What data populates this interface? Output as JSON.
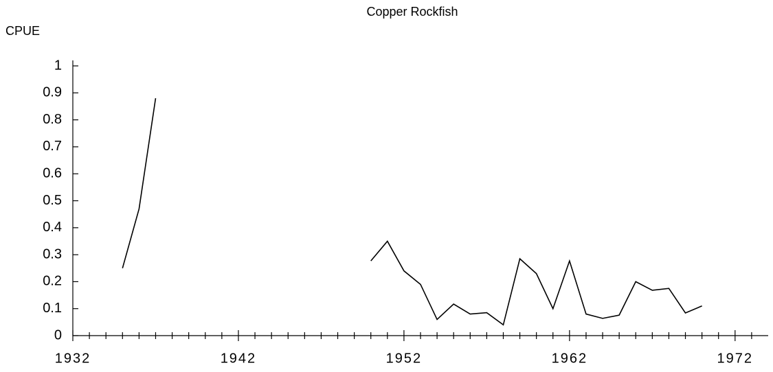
{
  "chart_data": {
    "type": "line",
    "title": "Copper Rockfish",
    "y_label": "CPUE",
    "x": [
      1935,
      1936,
      1937,
      1938,
      1939,
      1940,
      1941,
      1942,
      1943,
      1944,
      1945,
      1946,
      1947,
      1948,
      1949,
      1950,
      1951,
      1952,
      1953,
      1954,
      1955,
      1956,
      1957,
      1958,
      1959,
      1960,
      1961,
      1962,
      1963,
      1964,
      1965,
      1966,
      1967,
      1968,
      1969,
      1970
    ],
    "series": [
      {
        "color": "#000000",
        "values": [
          0.25,
          0.47,
          0.88,
          null,
          null,
          null,
          null,
          null,
          null,
          null,
          null,
          null,
          null,
          null,
          null,
          0.277,
          0.35,
          0.24,
          0.19,
          0.06,
          0.117,
          0.08,
          0.085,
          0.04,
          0.285,
          0.23,
          0.1,
          0.277,
          0.08,
          0.064,
          0.076,
          0.2,
          0.168,
          0.175,
          0.084,
          0.11
        ]
      }
    ],
    "xlim": [
      1932,
      1974
    ],
    "xticks": [
      1932,
      1942,
      1952,
      1962,
      1972
    ],
    "xminorticks": [
      1933,
      1934,
      1935,
      1936,
      1937,
      1938,
      1939,
      1940,
      1941,
      1943,
      1944,
      1945,
      1946,
      1947,
      1948,
      1949,
      1950,
      1951,
      1953,
      1954,
      1955,
      1956,
      1957,
      1958,
      1959,
      1960,
      1961,
      1963,
      1964,
      1965,
      1966,
      1967,
      1968,
      1969,
      1970,
      1971,
      1973
    ],
    "ylim": [
      0,
      1
    ],
    "yticks": [
      0,
      0.1,
      0.2,
      0.3,
      0.4,
      0.5,
      0.6,
      0.7,
      0.8,
      0.9,
      1
    ],
    "grid": false
  }
}
